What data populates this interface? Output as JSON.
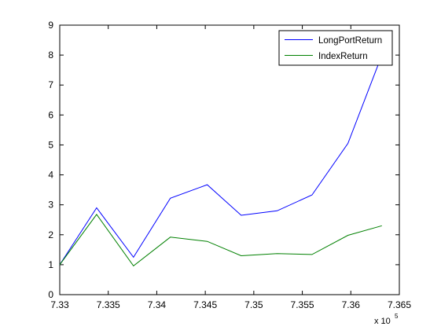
{
  "chart_data": {
    "type": "line",
    "title": "",
    "xlabel": "",
    "ylabel": "",
    "x_multiplier": {
      "base": "x 10",
      "exponent": "5"
    },
    "xlim": [
      7.33,
      7.365
    ],
    "ylim": [
      0,
      9
    ],
    "x_ticks": [
      7.33,
      7.335,
      7.34,
      7.345,
      7.35,
      7.355,
      7.36,
      7.365
    ],
    "x_tick_labels": [
      "7.33",
      "7.335",
      "7.34",
      "7.345",
      "7.35",
      "7.355",
      "7.36",
      "7.365"
    ],
    "y_ticks": [
      0,
      1,
      2,
      3,
      4,
      5,
      6,
      7,
      8,
      9
    ],
    "y_tick_labels": [
      "0",
      "1",
      "2",
      "3",
      "4",
      "5",
      "6",
      "7",
      "8",
      "9"
    ],
    "grid": false,
    "legend_position": "top-right",
    "x": [
      7.33,
      7.3338,
      7.3376,
      7.3414,
      7.3452,
      7.3487,
      7.3524,
      7.356,
      7.3597,
      7.3632
    ],
    "series": [
      {
        "name": "LongPortReturn",
        "color": "#0000ff",
        "values": [
          1.0,
          2.9,
          1.25,
          3.22,
          3.67,
          2.65,
          2.8,
          3.33,
          5.05,
          8.0
        ]
      },
      {
        "name": "IndexReturn",
        "color": "#008000",
        "values": [
          1.0,
          2.68,
          0.96,
          1.92,
          1.78,
          1.3,
          1.37,
          1.34,
          1.98,
          2.3
        ]
      }
    ]
  }
}
